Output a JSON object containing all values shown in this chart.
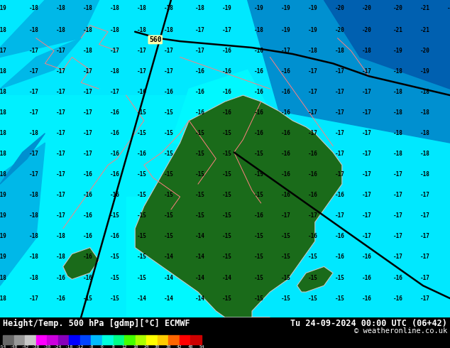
{
  "title_left": "Height/Temp. 500 hPa [gdmp][°C] ECMWF",
  "title_right": "Tu 24-09-2024 00:00 UTC (06+42)",
  "copyright": "© weatheronline.co.uk",
  "fig_width": 6.34,
  "fig_height": 4.9,
  "dpi": 100,
  "map_cyan_main": "#00e8ff",
  "map_cyan_light": "#00ffff",
  "map_blue_mid": "#00b8e8",
  "map_blue_dark": "#0090d0",
  "map_blue_darkest": "#0060b0",
  "land_green": "#1a6b1a",
  "land_border": "#c8c8c8",
  "isoline_pink": "#ff8080",
  "isoline_black": "#000000",
  "text_color": "#000000",
  "label_560_bg": "#ffffaa",
  "cbar_colors": [
    "#686868",
    "#989898",
    "#c8c8c8",
    "#ff00ff",
    "#cc00dd",
    "#8800bb",
    "#0000ff",
    "#0044ff",
    "#00bbff",
    "#00ffdd",
    "#00ff88",
    "#44ff00",
    "#aaff00",
    "#ffff00",
    "#ffcc00",
    "#ff6600",
    "#ff0000",
    "#cc0000"
  ],
  "cbar_labels": [
    "-54",
    "-48",
    "-42",
    "-38",
    "-30",
    "-24",
    "-18",
    "-12",
    "-8",
    "0",
    "8",
    "12",
    "18",
    "24",
    "30",
    "38",
    "42",
    "48",
    "54"
  ]
}
